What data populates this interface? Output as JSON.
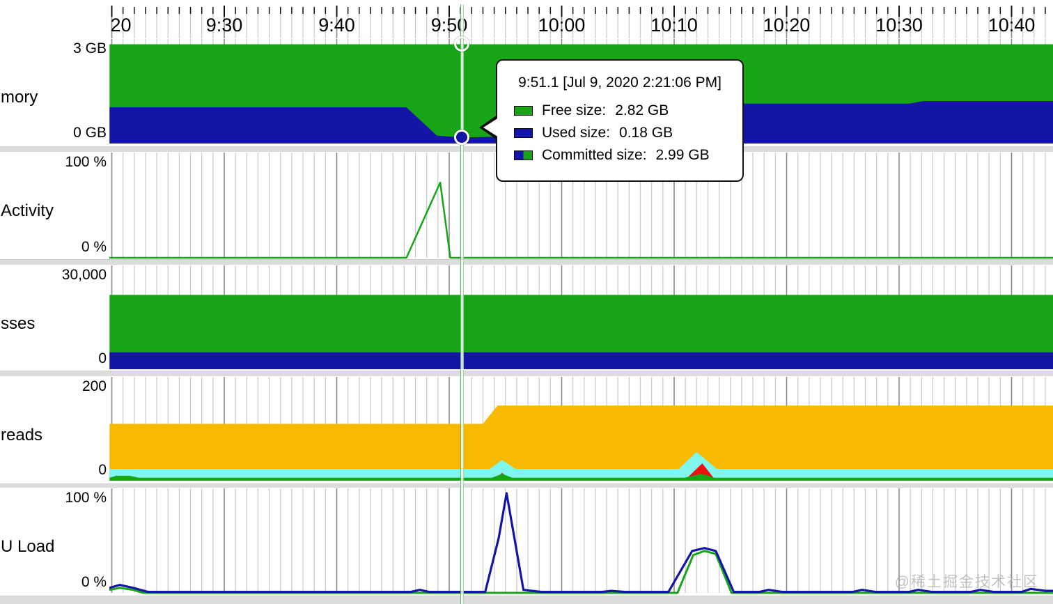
{
  "watermark": "@稀土掘金技术社区",
  "colors": {
    "green": "#17a517",
    "blue": "#1414a7",
    "amber": "#f8ba00",
    "cyan": "#80f6ec",
    "red": "#ee1010",
    "grid_minor": "#c9c9c9",
    "grid_major": "#8a8a8a",
    "tick": "#111111",
    "separator": "#dcdcdc"
  },
  "tooltip": {
    "title": "9:51.1 [Jul 9, 2020 2:21:06 PM]",
    "rows": [
      {
        "swatch": "green",
        "label": "Free size:",
        "value": "2.82 GB"
      },
      {
        "swatch": "blue",
        "label": "Used size:",
        "value": "0.18 GB"
      },
      {
        "swatch": "blue-green",
        "label": "Committed size:",
        "value": "2.99 GB"
      }
    ]
  },
  "cursor": {
    "t": 591.1,
    "markers": [
      {
        "chart": "memory",
        "value": 2.99,
        "style": "ring"
      },
      {
        "chart": "memory",
        "value": 0.18,
        "style": "filled"
      }
    ]
  },
  "chart_data": {
    "type": "area",
    "time_axis": {
      "t_start": 559.8,
      "t_end": 643.7,
      "minor_every_min": 1,
      "major_every_min": 10,
      "labels": [
        {
          "t": 560,
          "text": "20",
          "align": "left"
        },
        {
          "t": 570,
          "text": "9:30"
        },
        {
          "t": 580,
          "text": "9:40"
        },
        {
          "t": 590,
          "text": "9:50"
        },
        {
          "t": 600,
          "text": "10:00"
        },
        {
          "t": 610,
          "text": "10:10"
        },
        {
          "t": 620,
          "text": "10:20"
        },
        {
          "t": 630,
          "text": "10:30"
        },
        {
          "t": 640,
          "text": "10:40"
        }
      ]
    },
    "charts": [
      {
        "key": "memory",
        "row_label": "mory",
        "y_top_label": "3 GB",
        "y_bottom_label": "0 GB",
        "ymax": 3,
        "series": [
          {
            "name": "committed-size",
            "kind": "area",
            "color": "green",
            "points": [
              [
                559.8,
                2.99
              ],
              [
                643.7,
                2.99
              ]
            ]
          },
          {
            "name": "used-size",
            "kind": "area",
            "color": "blue",
            "points": [
              [
                559.8,
                1.09
              ],
              [
                586.2,
                1.09
              ],
              [
                588.9,
                0.24
              ],
              [
                591.1,
                0.18
              ],
              [
                593.5,
                0.2
              ],
              [
                614.8,
                0.2
              ],
              [
                616.2,
                1.2
              ],
              [
                630.9,
                1.2
              ],
              [
                632.2,
                1.28
              ],
              [
                643.7,
                1.28
              ]
            ]
          }
        ]
      },
      {
        "key": "gc",
        "row_label": "Activity",
        "y_top_label": "100 %",
        "y_bottom_label": "0 %",
        "ymax": 100,
        "series": [
          {
            "name": "gc-activity",
            "kind": "line",
            "color": "green",
            "width": 2.5,
            "points": [
              [
                559.8,
                0
              ],
              [
                586.2,
                0
              ],
              [
                589.2,
                75
              ],
              [
                590.1,
                0
              ],
              [
                643.7,
                0
              ]
            ]
          }
        ]
      },
      {
        "key": "classes",
        "row_label": "sses",
        "y_top_label": "30,000",
        "y_bottom_label": "0",
        "ymax": 30000,
        "series": [
          {
            "name": "total-loaded-classes",
            "kind": "area",
            "color": "green",
            "points": [
              [
                559.8,
                22100
              ],
              [
                643.7,
                22100
              ]
            ]
          },
          {
            "name": "shared-loaded-classes",
            "kind": "area",
            "color": "blue",
            "points": [
              [
                559.8,
                5000
              ],
              [
                643.7,
                5000
              ]
            ]
          }
        ]
      },
      {
        "key": "threads",
        "row_label": "reads",
        "y_top_label": "200",
        "y_bottom_label": "0",
        "ymax": 200,
        "series": [
          {
            "name": "total-threads",
            "kind": "area",
            "color": "amber",
            "points": [
              [
                559.8,
                115
              ],
              [
                593.0,
                115
              ],
              [
                594.3,
                152
              ],
              [
                643.7,
                152
              ]
            ]
          },
          {
            "name": "daemon-threads",
            "kind": "area",
            "color": "cyan",
            "points": [
              [
                559.8,
                24
              ],
              [
                593.6,
                24
              ],
              [
                594.7,
                42
              ],
              [
                595.9,
                24
              ],
              [
                610.4,
                24
              ],
              [
                612.0,
                58
              ],
              [
                613.8,
                24
              ],
              [
                643.7,
                24
              ]
            ]
          },
          {
            "name": "peak-threads",
            "kind": "area",
            "color": "red",
            "points": [
              [
                559.8,
                0
              ],
              [
                594.0,
                0
              ],
              [
                594.7,
                16
              ],
              [
                595.5,
                0
              ],
              [
                610.9,
                0
              ],
              [
                612.5,
                35
              ],
              [
                613.7,
                0
              ],
              [
                643.7,
                0
              ]
            ]
          },
          {
            "name": "started-threads",
            "kind": "area",
            "color": "green",
            "points": [
              [
                559.8,
                6
              ],
              [
                560.4,
                10
              ],
              [
                561.6,
                10
              ],
              [
                562.4,
                6
              ],
              [
                593.8,
                6
              ],
              [
                594.7,
                14
              ],
              [
                595.6,
                6
              ],
              [
                610.9,
                6
              ],
              [
                612.4,
                14
              ],
              [
                613.6,
                6
              ],
              [
                643.7,
                6
              ]
            ]
          }
        ]
      },
      {
        "key": "cpu",
        "row_label": "U Load",
        "y_top_label": "100 %",
        "y_bottom_label": "0 %",
        "ymax": 100,
        "series": [
          {
            "name": "gc-cpu",
            "kind": "line",
            "color": "green",
            "width": 3,
            "points": [
              [
                559.8,
                3
              ],
              [
                560.7,
                5
              ],
              [
                561.9,
                3
              ],
              [
                562.8,
                0
              ],
              [
                610.3,
                0
              ],
              [
                611.7,
                38
              ],
              [
                612.7,
                42
              ],
              [
                613.7,
                39
              ],
              [
                615.1,
                0
              ],
              [
                643.7,
                0
              ]
            ]
          },
          {
            "name": "cpu-usage",
            "kind": "line",
            "color": "blue",
            "width": 3.2,
            "points": [
              [
                559.8,
                5
              ],
              [
                560.7,
                8
              ],
              [
                561.9,
                5
              ],
              [
                563.2,
                1
              ],
              [
                586.6,
                1
              ],
              [
                587.4,
                3
              ],
              [
                588.2,
                1
              ],
              [
                593.2,
                1
              ],
              [
                594.4,
                55
              ],
              [
                595.1,
                100
              ],
              [
                596.6,
                3
              ],
              [
                598.2,
                1
              ],
              [
                603.6,
                1
              ],
              [
                604.4,
                2
              ],
              [
                605.6,
                1
              ],
              [
                609.5,
                1
              ],
              [
                611.6,
                42
              ],
              [
                612.7,
                45
              ],
              [
                613.7,
                42
              ],
              [
                615.3,
                1
              ],
              [
                617.6,
                1
              ],
              [
                618.4,
                3
              ],
              [
                619.6,
                1
              ],
              [
                625.9,
                1
              ],
              [
                626.7,
                3
              ],
              [
                627.9,
                1
              ],
              [
                630.9,
                1
              ],
              [
                631.7,
                3
              ],
              [
                632.9,
                1
              ],
              [
                636.4,
                1
              ],
              [
                637.2,
                3
              ],
              [
                638.4,
                1
              ],
              [
                640.9,
                1
              ],
              [
                641.7,
                4
              ],
              [
                643.0,
                2
              ],
              [
                643.7,
                2
              ]
            ]
          }
        ]
      }
    ]
  }
}
